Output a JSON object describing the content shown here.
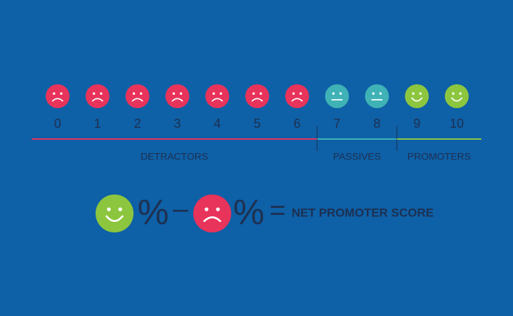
{
  "groups": [
    {
      "label": "DETRACTORS",
      "color": "#e8335b",
      "scores": [
        0,
        1,
        2,
        3,
        4,
        5,
        6
      ]
    },
    {
      "label": "PASSIVES",
      "color": "#3fb2b6",
      "scores": [
        7,
        8
      ]
    },
    {
      "label": "PROMOTERS",
      "color": "#8cc63f",
      "scores": [
        9,
        10
      ]
    }
  ],
  "formula": {
    "left": "%",
    "minus": "–",
    "right": "%",
    "equals": "=",
    "result": "NET PROMOTER SCORE"
  }
}
